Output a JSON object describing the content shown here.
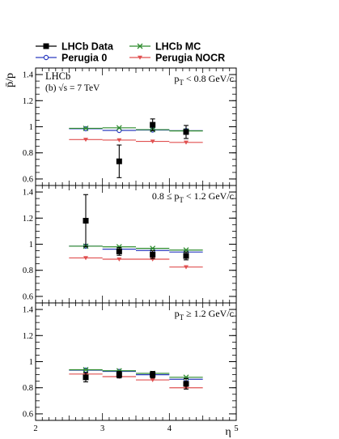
{
  "chart_data": [
    {
      "type": "scatter",
      "panel_label": "p_T < 0.8 GeV/c",
      "experiment": "LHCb",
      "energy_label": "(b) √s = 7 TeV",
      "ylabel": "p̄/p",
      "xlim": [
        2,
        5
      ],
      "ylim": [
        0.55,
        1.45
      ],
      "yticks": [
        "0.6",
        "0.8",
        "1",
        "1.2",
        "1.4"
      ],
      "series": [
        {
          "name": "LHCb Data",
          "color": "#000000",
          "x": [
            3.25,
            3.75,
            4.25
          ],
          "y": [
            0.735,
            1.015,
            0.96
          ],
          "yerr": [
            0.125,
            0.045,
            0.05
          ]
        },
        {
          "name": "LHCb MC",
          "color": "#2e8b2e",
          "x": [
            2.75,
            3.25,
            3.75,
            4.25
          ],
          "y": [
            0.988,
            0.992,
            0.978,
            0.968
          ]
        },
        {
          "name": "Perugia 0",
          "color": "#2c3cc0",
          "x": [
            2.75,
            3.25,
            3.75,
            4.25
          ],
          "y": [
            0.985,
            0.972,
            0.975,
            0.97
          ]
        },
        {
          "name": "Perugia NOCR",
          "color": "#e05050",
          "x": [
            2.75,
            3.25,
            3.75,
            4.25
          ],
          "y": [
            0.902,
            0.898,
            0.888,
            0.88
          ]
        }
      ]
    },
    {
      "type": "scatter",
      "panel_label": "0.8 ≤ p_T < 1.2 GeV/c",
      "xlim": [
        2,
        5
      ],
      "ylim": [
        0.55,
        1.45
      ],
      "yticks": [
        "0.6",
        "0.8",
        "1",
        "1.2",
        "1.4"
      ],
      "series": [
        {
          "name": "LHCb Data",
          "color": "#000000",
          "x": [
            2.75,
            3.25,
            3.75,
            4.25
          ],
          "y": [
            1.18,
            0.945,
            0.92,
            0.91
          ],
          "yerr": [
            0.2,
            0.03,
            0.03,
            0.03
          ]
        },
        {
          "name": "LHCb MC",
          "color": "#2e8b2e",
          "x": [
            2.75,
            3.25,
            3.75,
            4.25
          ],
          "y": [
            0.985,
            0.98,
            0.968,
            0.955
          ]
        },
        {
          "name": "Perugia 0",
          "color": "#2c3cc0",
          "x": [
            2.75,
            3.25,
            3.75,
            4.25
          ],
          "y": [
            0.985,
            0.962,
            0.952,
            0.94
          ]
        },
        {
          "name": "Perugia NOCR",
          "color": "#e05050",
          "x": [
            2.75,
            3.25,
            3.75,
            4.25
          ],
          "y": [
            0.895,
            0.885,
            0.885,
            0.825
          ]
        }
      ]
    },
    {
      "type": "scatter",
      "panel_label": "p_T ≥ 1.2 GeV/c",
      "xlabel": "η",
      "xlim": [
        2,
        5
      ],
      "ylim": [
        0.55,
        1.45
      ],
      "xticks": [
        "2",
        "3",
        "4",
        "5"
      ],
      "yticks": [
        "0.6",
        "0.8",
        "1",
        "1.2",
        "1.4"
      ],
      "series": [
        {
          "name": "LHCb Data",
          "color": "#000000",
          "x": [
            2.75,
            3.25,
            3.75,
            4.25
          ],
          "y": [
            0.88,
            0.9,
            0.9,
            0.83
          ],
          "yerr": [
            0.035,
            0.025,
            0.025,
            0.04
          ]
        },
        {
          "name": "LHCb MC",
          "color": "#2e8b2e",
          "x": [
            2.75,
            3.25,
            3.75,
            4.25
          ],
          "y": [
            0.938,
            0.93,
            0.91,
            0.88
          ]
        },
        {
          "name": "Perugia 0",
          "color": "#2c3cc0",
          "x": [
            2.75,
            3.25,
            3.75,
            4.25
          ],
          "y": [
            0.935,
            0.925,
            0.9,
            0.865
          ]
        },
        {
          "name": "Perugia NOCR",
          "color": "#e05050",
          "x": [
            2.75,
            3.25,
            3.75,
            4.25
          ],
          "y": [
            0.905,
            0.885,
            0.86,
            0.8
          ]
        }
      ]
    }
  ]
}
